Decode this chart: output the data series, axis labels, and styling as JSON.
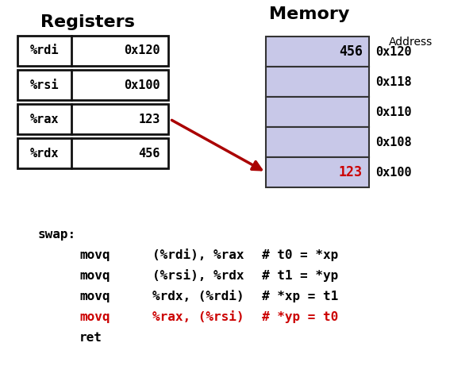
{
  "title_registers": "Registers",
  "title_memory": "Memory",
  "title_address": "Address",
  "registers": [
    {
      "name": "%rdi",
      "value": "0x120"
    },
    {
      "name": "%rsi",
      "value": "0x100"
    },
    {
      "name": "%rax",
      "value": "123"
    },
    {
      "name": "%rdx",
      "value": "456"
    }
  ],
  "memory_cells": [
    {
      "value": "456",
      "address": "0x120",
      "highlight": false
    },
    {
      "value": "",
      "address": "0x118",
      "highlight": false
    },
    {
      "value": "",
      "address": "0x110",
      "highlight": false
    },
    {
      "value": "",
      "address": "0x108",
      "highlight": false
    },
    {
      "value": "123",
      "address": "0x100",
      "highlight": true
    }
  ],
  "mem_fill_color": "#c8c8e8",
  "mem_edge_color": "#333333",
  "reg_fill_color": "#ffffff",
  "reg_edge_color": "#111111",
  "arrow_color": "#aa0000",
  "highlight_text_color": "#cc0000",
  "normal_text_color": "#000000",
  "movq_lines": [
    {
      "cmd": "movq",
      "arg": "(%rdi), %rax",
      "comment": "# t0 = *xp",
      "red": false
    },
    {
      "cmd": "movq",
      "arg": "(%rsi), %rdx",
      "comment": "# t1 = *yp",
      "red": false
    },
    {
      "cmd": "movq",
      "arg": "%rdx, (%rdi)",
      "comment": "# *xp = t1",
      "red": false
    },
    {
      "cmd": "movq",
      "arg": "%rax, (%rsi)",
      "comment": "# *yp = t0",
      "red": true
    }
  ],
  "fig_width": 5.96,
  "fig_height": 4.9,
  "bg_color": "#ffffff"
}
